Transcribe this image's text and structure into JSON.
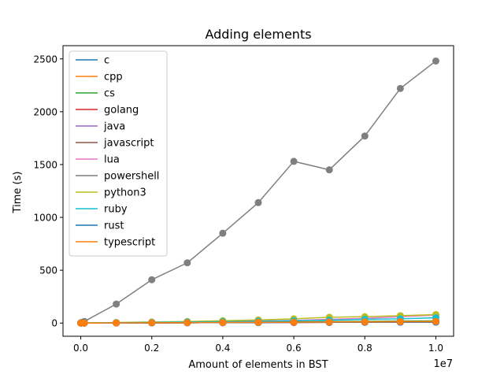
{
  "chart_data": {
    "type": "line",
    "title": "Adding elements",
    "xlabel": "Amount of elements in BST",
    "ylabel": "Time (s)",
    "x_offset_label": "1e7",
    "xlim": [
      -500000,
      10500000
    ],
    "ylim": [
      -125,
      2625
    ],
    "x_ticks": [
      0,
      2000000,
      4000000,
      6000000,
      8000000,
      10000000
    ],
    "x_tick_labels": [
      "0.0",
      "0.2",
      "0.4",
      "0.6",
      "0.8",
      "1.0"
    ],
    "y_ticks": [
      0,
      500,
      1000,
      1500,
      2000,
      2500
    ],
    "y_tick_labels": [
      "0",
      "500",
      "1000",
      "1500",
      "2000",
      "2500"
    ],
    "grid": false,
    "legend_position": "upper-left",
    "x": [
      1000,
      10000,
      100000,
      1000000,
      2000000,
      3000000,
      4000000,
      5000000,
      6000000,
      7000000,
      8000000,
      9000000,
      10000000
    ],
    "series": [
      {
        "name": "c",
        "color": "#1f77b4",
        "values": [
          0,
          0,
          0,
          1,
          2,
          3,
          4,
          5,
          6,
          7,
          8,
          9,
          10
        ]
      },
      {
        "name": "cpp",
        "color": "#ff7f0e",
        "values": [
          0,
          0,
          0,
          1,
          2,
          3,
          4,
          5,
          6,
          7,
          8,
          9,
          10
        ]
      },
      {
        "name": "cs",
        "color": "#2ca02c",
        "values": [
          0,
          0,
          0,
          2,
          4,
          6,
          8,
          10,
          12,
          14,
          16,
          18,
          20
        ]
      },
      {
        "name": "golang",
        "color": "#d62728",
        "values": [
          0,
          0,
          0,
          1,
          2,
          3,
          4,
          5,
          6,
          7,
          8,
          9,
          10
        ]
      },
      {
        "name": "java",
        "color": "#9467bd",
        "values": [
          0,
          0,
          0,
          1,
          2,
          3,
          4,
          5,
          6,
          7,
          8,
          9,
          10
        ]
      },
      {
        "name": "javascript",
        "color": "#8c564b",
        "values": [
          0,
          0,
          0,
          1,
          3,
          4,
          5,
          7,
          8,
          10,
          11,
          13,
          15
        ]
      },
      {
        "name": "lua",
        "color": "#e377c2",
        "values": [
          0,
          0,
          0,
          3,
          5,
          10,
          15,
          20,
          25,
          35,
          45,
          60,
          75
        ]
      },
      {
        "name": "powershell",
        "color": "#7f7f7f",
        "values": [
          2,
          5,
          15,
          180,
          410,
          570,
          850,
          1140,
          1530,
          1450,
          1770,
          2220,
          2480
        ]
      },
      {
        "name": "python3",
        "color": "#bcbd22",
        "values": [
          0,
          0,
          1,
          5,
          10,
          15,
          22,
          30,
          40,
          55,
          60,
          70,
          80
        ]
      },
      {
        "name": "ruby",
        "color": "#17becf",
        "values": [
          0,
          0,
          0,
          3,
          6,
          10,
          13,
          17,
          22,
          27,
          35,
          40,
          50
        ]
      },
      {
        "name": "rust",
        "color": "#1f77b4",
        "values": [
          0,
          0,
          0,
          1,
          2,
          3,
          4,
          5,
          6,
          7,
          8,
          9,
          10
        ]
      },
      {
        "name": "typescript",
        "color": "#ff7f0e",
        "values": [
          0,
          0,
          0,
          1,
          3,
          4,
          5,
          7,
          8,
          10,
          11,
          13,
          15
        ]
      }
    ]
  }
}
